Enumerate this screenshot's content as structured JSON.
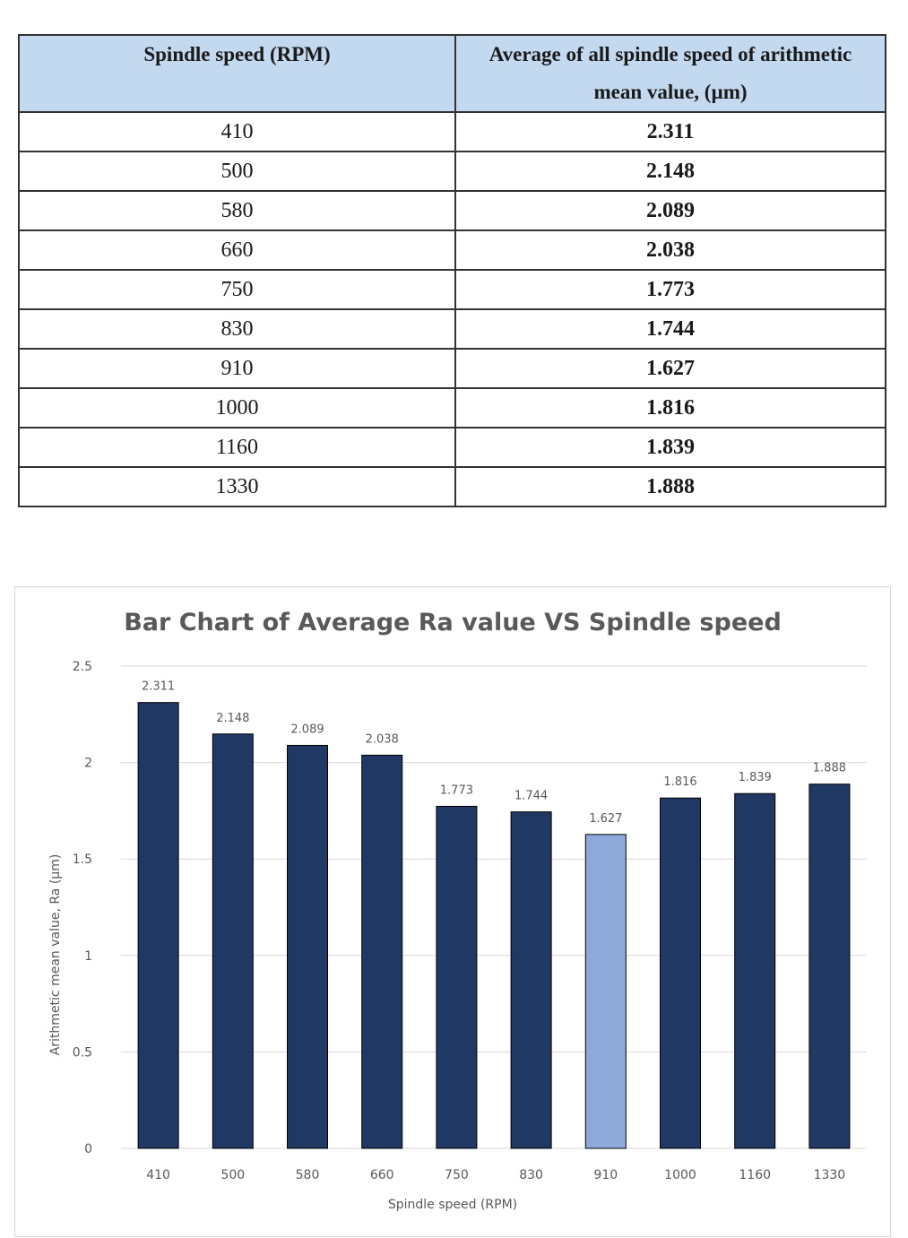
{
  "table": {
    "headers": [
      "Spindle speed (RPM)",
      "Average of all spindle speed of arithmetic mean value, (µm)"
    ],
    "rows": [
      {
        "speed": "410",
        "value": "2.311"
      },
      {
        "speed": "500",
        "value": "2.148"
      },
      {
        "speed": "580",
        "value": "2.089"
      },
      {
        "speed": "660",
        "value": "2.038"
      },
      {
        "speed": "750",
        "value": "1.773"
      },
      {
        "speed": "830",
        "value": "1.744"
      },
      {
        "speed": "910",
        "value": "1.627"
      },
      {
        "speed": "1000",
        "value": "1.816"
      },
      {
        "speed": "1160",
        "value": "1.839"
      },
      {
        "speed": "1330",
        "value": "1.888"
      }
    ]
  },
  "chart_data": {
    "type": "bar",
    "title": "Bar Chart of Average Ra value VS Spindle speed",
    "xlabel": "Spindle speed (RPM)",
    "ylabel": "Arithmetic mean value, Ra (µm)",
    "categories": [
      "410",
      "500",
      "580",
      "660",
      "750",
      "830",
      "910",
      "1000",
      "1160",
      "1330"
    ],
    "values": [
      2.311,
      2.148,
      2.089,
      2.038,
      1.773,
      1.744,
      1.627,
      1.816,
      1.839,
      1.888
    ],
    "ylim": [
      0,
      2.5
    ],
    "yticks": [
      "0",
      "0.5",
      "1",
      "1.5",
      "2",
      "2.5"
    ],
    "grid": true,
    "colors": {
      "bar": "#1f3864",
      "highlight": "#8eaadb",
      "grid": "#d9d9d9",
      "text": "#595959"
    },
    "highlight_category": "910"
  }
}
